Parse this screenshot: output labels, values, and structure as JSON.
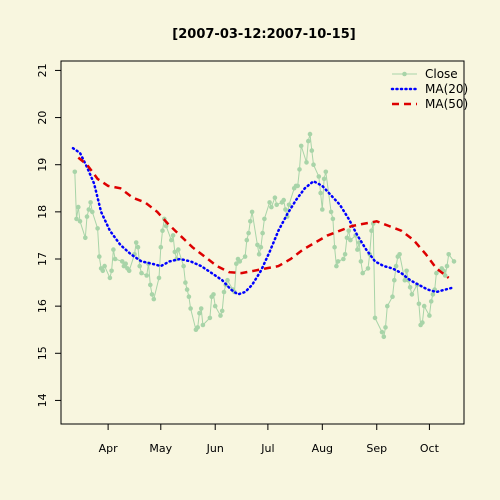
{
  "chart_data": {
    "type": "line",
    "title": "[2007-03-12:2007-10-15]",
    "xlabel": "",
    "ylabel": "",
    "x_range": [
      "2007-03-12",
      "2007-10-15"
    ],
    "ylim": [
      13.5,
      21.2
    ],
    "x_ticks": [
      {
        "date": "2007-04-01",
        "label": "Apr"
      },
      {
        "date": "2007-05-01",
        "label": "May"
      },
      {
        "date": "2007-06-01",
        "label": "Jun"
      },
      {
        "date": "2007-07-01",
        "label": "Jul"
      },
      {
        "date": "2007-08-01",
        "label": "Aug"
      },
      {
        "date": "2007-09-01",
        "label": "Sep"
      },
      {
        "date": "2007-10-01",
        "label": "Oct"
      }
    ],
    "y_ticks": [
      14,
      15,
      16,
      17,
      18,
      19,
      20,
      21
    ],
    "grid": false,
    "legend_position": "top-right",
    "series": [
      {
        "name": "Close",
        "color": "#a8d4a8",
        "style": "line-points",
        "points": [
          [
            "2007-03-13",
            18.85
          ],
          [
            "2007-03-14",
            17.85
          ],
          [
            "2007-03-15",
            18.1
          ],
          [
            "2007-03-16",
            17.8
          ],
          [
            "2007-03-19",
            17.45
          ],
          [
            "2007-03-20",
            17.9
          ],
          [
            "2007-03-21",
            18.05
          ],
          [
            "2007-03-22",
            18.2
          ],
          [
            "2007-03-23",
            18.0
          ],
          [
            "2007-03-26",
            17.65
          ],
          [
            "2007-03-27",
            17.05
          ],
          [
            "2007-03-28",
            16.8
          ],
          [
            "2007-03-29",
            16.75
          ],
          [
            "2007-03-30",
            16.85
          ],
          [
            "2007-04-02",
            16.6
          ],
          [
            "2007-04-03",
            16.75
          ],
          [
            "2007-04-04",
            17.2
          ],
          [
            "2007-04-05",
            17.0
          ],
          [
            "2007-04-09",
            16.95
          ],
          [
            "2007-04-10",
            16.85
          ],
          [
            "2007-04-11",
            16.9
          ],
          [
            "2007-04-12",
            16.8
          ],
          [
            "2007-04-13",
            16.75
          ],
          [
            "2007-04-16",
            17.1
          ],
          [
            "2007-04-17",
            17.35
          ],
          [
            "2007-04-18",
            17.25
          ],
          [
            "2007-04-19",
            16.85
          ],
          [
            "2007-04-20",
            16.7
          ],
          [
            "2007-04-23",
            16.65
          ],
          [
            "2007-04-24",
            16.9
          ],
          [
            "2007-04-25",
            16.45
          ],
          [
            "2007-04-26",
            16.25
          ],
          [
            "2007-04-27",
            16.15
          ],
          [
            "2007-04-30",
            16.6
          ],
          [
            "2007-05-01",
            17.25
          ],
          [
            "2007-05-02",
            17.6
          ],
          [
            "2007-05-03",
            17.85
          ],
          [
            "2007-05-04",
            17.7
          ],
          [
            "2007-05-07",
            17.4
          ],
          [
            "2007-05-08",
            17.5
          ],
          [
            "2007-05-09",
            17.15
          ],
          [
            "2007-05-10",
            17.0
          ],
          [
            "2007-05-11",
            17.2
          ],
          [
            "2007-05-14",
            16.85
          ],
          [
            "2007-05-15",
            16.5
          ],
          [
            "2007-05-16",
            16.35
          ],
          [
            "2007-05-17",
            16.2
          ],
          [
            "2007-05-18",
            15.95
          ],
          [
            "2007-05-21",
            15.5
          ],
          [
            "2007-05-22",
            15.55
          ],
          [
            "2007-05-23",
            15.85
          ],
          [
            "2007-05-24",
            15.95
          ],
          [
            "2007-05-25",
            15.6
          ],
          [
            "2007-05-29",
            15.75
          ],
          [
            "2007-05-30",
            16.2
          ],
          [
            "2007-05-31",
            16.25
          ],
          [
            "2007-06-01",
            16.0
          ],
          [
            "2007-06-04",
            15.8
          ],
          [
            "2007-06-05",
            15.9
          ],
          [
            "2007-06-06",
            16.3
          ],
          [
            "2007-06-07",
            16.45
          ],
          [
            "2007-06-08",
            16.55
          ],
          [
            "2007-06-11",
            16.35
          ],
          [
            "2007-06-12",
            16.3
          ],
          [
            "2007-06-13",
            16.9
          ],
          [
            "2007-06-14",
            17.0
          ],
          [
            "2007-06-15",
            16.95
          ],
          [
            "2007-06-18",
            17.05
          ],
          [
            "2007-06-19",
            17.4
          ],
          [
            "2007-06-20",
            17.55
          ],
          [
            "2007-06-21",
            17.8
          ],
          [
            "2007-06-22",
            18.0
          ],
          [
            "2007-06-25",
            17.3
          ],
          [
            "2007-06-26",
            17.1
          ],
          [
            "2007-06-27",
            17.25
          ],
          [
            "2007-06-28",
            17.55
          ],
          [
            "2007-06-29",
            17.85
          ],
          [
            "2007-07-02",
            18.2
          ],
          [
            "2007-07-03",
            18.1
          ],
          [
            "2007-07-05",
            18.3
          ],
          [
            "2007-07-06",
            18.15
          ],
          [
            "2007-07-09",
            18.2
          ],
          [
            "2007-07-10",
            18.25
          ],
          [
            "2007-07-11",
            18.05
          ],
          [
            "2007-07-12",
            17.9
          ],
          [
            "2007-07-13",
            18.15
          ],
          [
            "2007-07-16",
            18.5
          ],
          [
            "2007-07-17",
            18.55
          ],
          [
            "2007-07-18",
            18.55
          ],
          [
            "2007-07-19",
            18.9
          ],
          [
            "2007-07-20",
            19.4
          ],
          [
            "2007-07-23",
            19.05
          ],
          [
            "2007-07-24",
            19.5
          ],
          [
            "2007-07-25",
            19.65
          ],
          [
            "2007-07-26",
            19.3
          ],
          [
            "2007-07-27",
            19.0
          ],
          [
            "2007-07-30",
            18.75
          ],
          [
            "2007-07-31",
            18.4
          ],
          [
            "2007-08-01",
            18.05
          ],
          [
            "2007-08-02",
            18.7
          ],
          [
            "2007-08-03",
            18.85
          ],
          [
            "2007-08-06",
            18.0
          ],
          [
            "2007-08-07",
            17.85
          ],
          [
            "2007-08-08",
            17.25
          ],
          [
            "2007-08-09",
            16.85
          ],
          [
            "2007-08-10",
            16.95
          ],
          [
            "2007-08-13",
            17.0
          ],
          [
            "2007-08-14",
            17.1
          ],
          [
            "2007-08-15",
            17.45
          ],
          [
            "2007-08-16",
            17.6
          ],
          [
            "2007-08-17",
            17.4
          ],
          [
            "2007-08-20",
            17.5
          ],
          [
            "2007-08-21",
            17.2
          ],
          [
            "2007-08-22",
            17.35
          ],
          [
            "2007-08-23",
            16.95
          ],
          [
            "2007-08-24",
            16.7
          ],
          [
            "2007-08-27",
            16.8
          ],
          [
            "2007-08-28",
            17.1
          ],
          [
            "2007-08-29",
            17.6
          ],
          [
            "2007-08-30",
            17.75
          ],
          [
            "2007-08-31",
            15.75
          ],
          [
            "2007-09-04",
            15.45
          ],
          [
            "2007-09-05",
            15.35
          ],
          [
            "2007-09-06",
            15.55
          ],
          [
            "2007-09-07",
            16.0
          ],
          [
            "2007-09-10",
            16.2
          ],
          [
            "2007-09-11",
            16.55
          ],
          [
            "2007-09-12",
            16.85
          ],
          [
            "2007-09-13",
            17.05
          ],
          [
            "2007-09-14",
            17.1
          ],
          [
            "2007-09-17",
            16.55
          ],
          [
            "2007-09-18",
            16.75
          ],
          [
            "2007-09-19",
            16.55
          ],
          [
            "2007-09-20",
            16.4
          ],
          [
            "2007-09-21",
            16.25
          ],
          [
            "2007-09-24",
            16.45
          ],
          [
            "2007-09-25",
            16.05
          ],
          [
            "2007-09-26",
            15.6
          ],
          [
            "2007-09-27",
            15.65
          ],
          [
            "2007-09-28",
            16.0
          ],
          [
            "2007-10-01",
            15.8
          ],
          [
            "2007-10-02",
            16.1
          ],
          [
            "2007-10-03",
            16.25
          ],
          [
            "2007-10-04",
            16.35
          ],
          [
            "2007-10-05",
            16.7
          ],
          [
            "2007-10-08",
            16.8
          ],
          [
            "2007-10-09",
            16.75
          ],
          [
            "2007-10-10",
            16.65
          ],
          [
            "2007-10-11",
            16.85
          ],
          [
            "2007-10-12",
            17.1
          ],
          [
            "2007-10-15",
            16.95
          ]
        ]
      },
      {
        "name": "MA(20)",
        "color": "#0000ff",
        "style": "dotted",
        "points": [
          [
            "2007-03-12",
            19.35
          ],
          [
            "2007-03-16",
            19.25
          ],
          [
            "2007-03-20",
            18.95
          ],
          [
            "2007-03-24",
            18.6
          ],
          [
            "2007-03-28",
            18.0
          ],
          [
            "2007-04-02",
            17.6
          ],
          [
            "2007-04-08",
            17.3
          ],
          [
            "2007-04-14",
            17.1
          ],
          [
            "2007-04-20",
            16.95
          ],
          [
            "2007-04-26",
            16.9
          ],
          [
            "2007-05-01",
            16.85
          ],
          [
            "2007-05-06",
            16.95
          ],
          [
            "2007-05-12",
            17.0
          ],
          [
            "2007-05-18",
            16.95
          ],
          [
            "2007-05-24",
            16.85
          ],
          [
            "2007-05-30",
            16.7
          ],
          [
            "2007-06-05",
            16.55
          ],
          [
            "2007-06-10",
            16.35
          ],
          [
            "2007-06-14",
            16.25
          ],
          [
            "2007-06-18",
            16.3
          ],
          [
            "2007-06-22",
            16.45
          ],
          [
            "2007-06-27",
            16.75
          ],
          [
            "2007-07-02",
            17.15
          ],
          [
            "2007-07-07",
            17.6
          ],
          [
            "2007-07-12",
            17.95
          ],
          [
            "2007-07-17",
            18.25
          ],
          [
            "2007-07-22",
            18.5
          ],
          [
            "2007-07-27",
            18.65
          ],
          [
            "2007-08-01",
            18.55
          ],
          [
            "2007-08-06",
            18.35
          ],
          [
            "2007-08-11",
            18.15
          ],
          [
            "2007-08-16",
            17.85
          ],
          [
            "2007-08-21",
            17.5
          ],
          [
            "2007-08-26",
            17.2
          ],
          [
            "2007-08-31",
            16.95
          ],
          [
            "2007-09-05",
            16.85
          ],
          [
            "2007-09-10",
            16.8
          ],
          [
            "2007-09-15",
            16.7
          ],
          [
            "2007-09-20",
            16.55
          ],
          [
            "2007-09-25",
            16.45
          ],
          [
            "2007-09-30",
            16.35
          ],
          [
            "2007-10-05",
            16.3
          ],
          [
            "2007-10-10",
            16.35
          ],
          [
            "2007-10-15",
            16.4
          ]
        ]
      },
      {
        "name": "MA(50)",
        "color": "#dd0000",
        "style": "dashed",
        "points": [
          [
            "2007-03-15",
            19.15
          ],
          [
            "2007-03-20",
            19.0
          ],
          [
            "2007-03-26",
            18.7
          ],
          [
            "2007-04-01",
            18.55
          ],
          [
            "2007-04-08",
            18.5
          ],
          [
            "2007-04-15",
            18.3
          ],
          [
            "2007-04-22",
            18.2
          ],
          [
            "2007-04-29",
            18.0
          ],
          [
            "2007-05-05",
            17.75
          ],
          [
            "2007-05-12",
            17.5
          ],
          [
            "2007-05-19",
            17.25
          ],
          [
            "2007-05-26",
            17.05
          ],
          [
            "2007-06-02",
            16.85
          ],
          [
            "2007-06-09",
            16.72
          ],
          [
            "2007-06-16",
            16.7
          ],
          [
            "2007-06-23",
            16.75
          ],
          [
            "2007-06-30",
            16.8
          ],
          [
            "2007-07-07",
            16.85
          ],
          [
            "2007-07-14",
            17.0
          ],
          [
            "2007-07-21",
            17.2
          ],
          [
            "2007-07-28",
            17.35
          ],
          [
            "2007-08-04",
            17.5
          ],
          [
            "2007-08-11",
            17.6
          ],
          [
            "2007-08-18",
            17.7
          ],
          [
            "2007-08-25",
            17.75
          ],
          [
            "2007-09-01",
            17.8
          ],
          [
            "2007-09-08",
            17.7
          ],
          [
            "2007-09-15",
            17.6
          ],
          [
            "2007-09-22",
            17.4
          ],
          [
            "2007-09-29",
            17.1
          ],
          [
            "2007-10-05",
            16.8
          ],
          [
            "2007-10-12",
            16.6
          ]
        ]
      }
    ]
  }
}
